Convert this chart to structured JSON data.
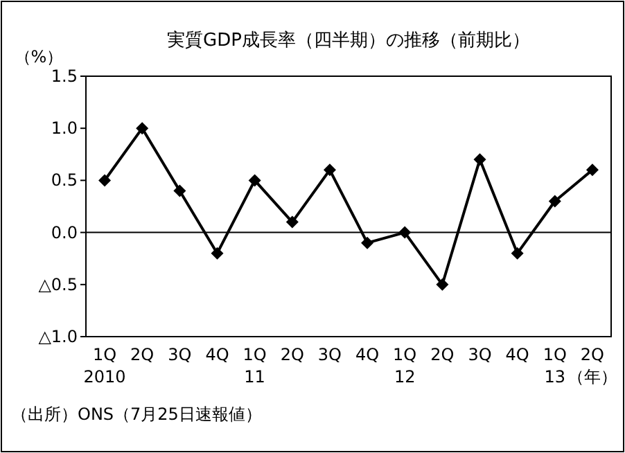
{
  "chart_data": {
    "type": "line",
    "title": "実質GDP成長率（四半期）の推移（前期比）",
    "ylabel": "（%）",
    "categories": [
      "1Q\n2010",
      "2Q",
      "3Q",
      "4Q",
      "1Q\n11",
      "2Q",
      "3Q",
      "4Q",
      "1Q\n12",
      "2Q",
      "3Q",
      "4Q",
      "1Q\n13",
      "2Q\n（年）"
    ],
    "series": [
      {
        "color": "#000000",
        "values": [
          0.5,
          1.0,
          0.4,
          -0.2,
          0.5,
          0.1,
          0.6,
          -0.1,
          0.0,
          -0.5,
          0.7,
          -0.2,
          0.3,
          0.6
        ]
      }
    ],
    "ylim": [
      -1.0,
      1.5
    ],
    "yticks": [
      {
        "value": -1.0,
        "label": "△1.0"
      },
      {
        "value": -0.5,
        "label": "△0.5"
      },
      {
        "value": 0,
        "label": "0.0"
      },
      {
        "value": 0.5,
        "label": "0.5"
      },
      {
        "value": 1.0,
        "label": "1.0"
      },
      {
        "value": 1.5,
        "label": "1.5"
      }
    ],
    "ref_lines": [
      {
        "axis": "y",
        "value": 0,
        "color": "#000000"
      }
    ],
    "marker": "diamond",
    "line_style": "solid",
    "annotations": [
      "（出所）ONS（7月25日速報値）"
    ]
  }
}
